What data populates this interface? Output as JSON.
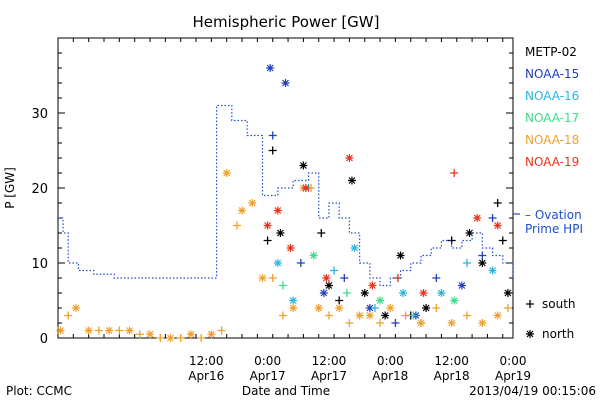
{
  "chart_data": {
    "type": "scatter",
    "title": "Hemispheric Power [GW]",
    "ylabel": "P [GW]",
    "xlabel": "Date and Time",
    "ylim": [
      0,
      40
    ],
    "xlim": [
      "2013-04-15 07:00",
      "2013-04-19 00:00"
    ],
    "yticks": [
      0,
      10,
      20,
      30
    ],
    "xticks": [
      {
        "t": "2013-04-16 12:00",
        "line1": "12:00",
        "line2": "Apr16"
      },
      {
        "t": "2013-04-17 00:00",
        "line1": "0:00",
        "line2": "Apr17"
      },
      {
        "t": "2013-04-17 12:00",
        "line1": "12:00",
        "line2": "Apr17"
      },
      {
        "t": "2013-04-18 00:00",
        "line1": "0:00",
        "line2": "Apr18"
      },
      {
        "t": "2013-04-18 12:00",
        "line1": "12:00",
        "line2": "Apr18"
      },
      {
        "t": "2013-04-19 00:00",
        "line1": "0:00",
        "line2": "Apr19"
      }
    ],
    "legend_position": "right",
    "series": [
      {
        "name": "METP-02",
        "color": "#000000",
        "points": [
          {
            "t": "2013-04-17 00:00",
            "y": 13,
            "m": "+"
          },
          {
            "t": "2013-04-17 01:00",
            "y": 25,
            "m": "+"
          },
          {
            "t": "2013-04-17 02:30",
            "y": 14,
            "m": "*"
          },
          {
            "t": "2013-04-17 07:00",
            "y": 23,
            "m": "*"
          },
          {
            "t": "2013-04-17 10:30",
            "y": 14,
            "m": "+"
          },
          {
            "t": "2013-04-17 12:00",
            "y": 7,
            "m": "*"
          },
          {
            "t": "2013-04-17 14:00",
            "y": 5,
            "m": "+"
          },
          {
            "t": "2013-04-17 16:30",
            "y": 21,
            "m": "*"
          },
          {
            "t": "2013-04-17 19:00",
            "y": 6,
            "m": "*"
          },
          {
            "t": "2013-04-17 23:00",
            "y": 3,
            "m": "*"
          },
          {
            "t": "2013-04-18 02:00",
            "y": 11,
            "m": "*"
          },
          {
            "t": "2013-04-18 04:00",
            "y": 3,
            "m": "+"
          },
          {
            "t": "2013-04-18 07:00",
            "y": 4,
            "m": "*"
          },
          {
            "t": "2013-04-18 12:00",
            "y": 13,
            "m": "+"
          },
          {
            "t": "2013-04-18 15:30",
            "y": 14,
            "m": "*"
          },
          {
            "t": "2013-04-18 18:00",
            "y": 10,
            "m": "*"
          },
          {
            "t": "2013-04-18 21:00",
            "y": 18,
            "m": "+"
          },
          {
            "t": "2013-04-18 22:00",
            "y": 13,
            "m": "+"
          },
          {
            "t": "2013-04-18 23:00",
            "y": 6,
            "m": "*"
          }
        ]
      },
      {
        "name": "NOAA-15",
        "color": "#1f3fbf",
        "points": [
          {
            "t": "2013-04-17 00:30",
            "y": 36,
            "m": "*"
          },
          {
            "t": "2013-04-17 01:00",
            "y": 27,
            "m": "+"
          },
          {
            "t": "2013-04-17 03:30",
            "y": 34,
            "m": "*"
          },
          {
            "t": "2013-04-17 06:30",
            "y": 10,
            "m": "+"
          },
          {
            "t": "2013-04-17 11:00",
            "y": 6,
            "m": "*"
          },
          {
            "t": "2013-04-17 15:00",
            "y": 8,
            "m": "+"
          },
          {
            "t": "2013-04-17 20:00",
            "y": 4,
            "m": "*"
          },
          {
            "t": "2013-04-18 01:00",
            "y": 2,
            "m": "+"
          },
          {
            "t": "2013-04-18 05:00",
            "y": 3,
            "m": "*"
          },
          {
            "t": "2013-04-18 09:00",
            "y": 8,
            "m": "+"
          },
          {
            "t": "2013-04-18 14:00",
            "y": 7,
            "m": "*"
          },
          {
            "t": "2013-04-18 18:00",
            "y": 11,
            "m": "+"
          },
          {
            "t": "2013-04-18 20:00",
            "y": 16,
            "m": "+"
          }
        ]
      },
      {
        "name": "NOAA-16",
        "color": "#29b6e0",
        "points": [
          {
            "t": "2013-04-17 02:00",
            "y": 10,
            "m": "*"
          },
          {
            "t": "2013-04-17 05:00",
            "y": 5,
            "m": "*"
          },
          {
            "t": "2013-04-17 08:00",
            "y": 20,
            "m": "+"
          },
          {
            "t": "2013-04-17 13:00",
            "y": 9,
            "m": "+"
          },
          {
            "t": "2013-04-17 17:00",
            "y": 12,
            "m": "*"
          },
          {
            "t": "2013-04-17 21:00",
            "y": 4,
            "m": "+"
          },
          {
            "t": "2013-04-18 02:30",
            "y": 6,
            "m": "*"
          },
          {
            "t": "2013-04-18 06:00",
            "y": 2,
            "m": "+"
          },
          {
            "t": "2013-04-18 10:00",
            "y": 6,
            "m": "*"
          },
          {
            "t": "2013-04-18 15:00",
            "y": 10,
            "m": "+"
          },
          {
            "t": "2013-04-18 20:00",
            "y": 9,
            "m": "*"
          }
        ]
      },
      {
        "name": "NOAA-17",
        "color": "#3ddc8a",
        "points": [
          {
            "t": "2013-04-17 03:00",
            "y": 7,
            "m": "+"
          },
          {
            "t": "2013-04-17 09:00",
            "y": 11,
            "m": "*"
          },
          {
            "t": "2013-04-17 15:30",
            "y": 6,
            "m": "+"
          },
          {
            "t": "2013-04-17 22:00",
            "y": 5,
            "m": "*"
          },
          {
            "t": "2013-04-18 04:30",
            "y": 3,
            "m": "+"
          },
          {
            "t": "2013-04-18 12:30",
            "y": 5,
            "m": "*"
          }
        ]
      },
      {
        "name": "NOAA-18",
        "color": "#f0a030",
        "points": [
          {
            "t": "2013-04-15 07:30",
            "y": 1,
            "m": "*"
          },
          {
            "t": "2013-04-15 09:00",
            "y": 3,
            "m": "+"
          },
          {
            "t": "2013-04-15 10:30",
            "y": 4,
            "m": "*"
          },
          {
            "t": "2013-04-15 13:00",
            "y": 1,
            "m": "*"
          },
          {
            "t": "2013-04-15 15:00",
            "y": 1,
            "m": "+"
          },
          {
            "t": "2013-04-15 17:00",
            "y": 1,
            "m": "*"
          },
          {
            "t": "2013-04-15 19:00",
            "y": 1,
            "m": "+"
          },
          {
            "t": "2013-04-15 21:00",
            "y": 1,
            "m": "*"
          },
          {
            "t": "2013-04-15 23:00",
            "y": 0.5,
            "m": "+"
          },
          {
            "t": "2013-04-16 01:00",
            "y": 0.5,
            "m": "*"
          },
          {
            "t": "2013-04-16 03:00",
            "y": 0,
            "m": "+"
          },
          {
            "t": "2013-04-16 05:00",
            "y": 0,
            "m": "*"
          },
          {
            "t": "2013-04-16 07:00",
            "y": 0,
            "m": "+"
          },
          {
            "t": "2013-04-16 09:00",
            "y": 0.5,
            "m": "*"
          },
          {
            "t": "2013-04-16 11:00",
            "y": 0,
            "m": "+"
          },
          {
            "t": "2013-04-16 13:00",
            "y": 0.5,
            "m": "*"
          },
          {
            "t": "2013-04-16 15:00",
            "y": 1,
            "m": "+"
          },
          {
            "t": "2013-04-16 16:00",
            "y": 22,
            "m": "*"
          },
          {
            "t": "2013-04-16 18:00",
            "y": 15,
            "m": "+"
          },
          {
            "t": "2013-04-16 19:00",
            "y": 17,
            "m": "*"
          },
          {
            "t": "2013-04-16 21:00",
            "y": 18,
            "m": "*"
          },
          {
            "t": "2013-04-16 23:00",
            "y": 8,
            "m": "*"
          },
          {
            "t": "2013-04-17 01:00",
            "y": 8,
            "m": "+"
          },
          {
            "t": "2013-04-17 03:00",
            "y": 3,
            "m": "+"
          },
          {
            "t": "2013-04-17 05:00",
            "y": 4,
            "m": "*"
          },
          {
            "t": "2013-04-17 07:00",
            "y": 20,
            "m": "*"
          },
          {
            "t": "2013-04-17 08:30",
            "y": 20,
            "m": "+"
          },
          {
            "t": "2013-04-17 10:00",
            "y": 4,
            "m": "*"
          },
          {
            "t": "2013-04-17 12:00",
            "y": 3,
            "m": "+"
          },
          {
            "t": "2013-04-17 14:00",
            "y": 4,
            "m": "*"
          },
          {
            "t": "2013-04-17 16:00",
            "y": 2,
            "m": "+"
          },
          {
            "t": "2013-04-17 18:00",
            "y": 3,
            "m": "*"
          },
          {
            "t": "2013-04-17 20:00",
            "y": 3,
            "m": "*"
          },
          {
            "t": "2013-04-17 22:00",
            "y": 2,
            "m": "+"
          },
          {
            "t": "2013-04-18 00:00",
            "y": 4,
            "m": "*"
          },
          {
            "t": "2013-04-18 03:00",
            "y": 3,
            "m": "+"
          },
          {
            "t": "2013-04-18 06:00",
            "y": 2,
            "m": "*"
          },
          {
            "t": "2013-04-18 09:00",
            "y": 4,
            "m": "+"
          },
          {
            "t": "2013-04-18 12:00",
            "y": 2,
            "m": "*"
          },
          {
            "t": "2013-04-18 15:00",
            "y": 3,
            "m": "+"
          },
          {
            "t": "2013-04-18 18:00",
            "y": 2,
            "m": "*"
          },
          {
            "t": "2013-04-18 21:00",
            "y": 3,
            "m": "*"
          },
          {
            "t": "2013-04-18 23:00",
            "y": 4,
            "m": "+"
          }
        ]
      },
      {
        "name": "NOAA-19",
        "color": "#e8341c",
        "points": [
          {
            "t": "2013-04-17 00:00",
            "y": 15,
            "m": "*"
          },
          {
            "t": "2013-04-17 02:00",
            "y": 17,
            "m": "*"
          },
          {
            "t": "2013-04-17 04:30",
            "y": 12,
            "m": "*"
          },
          {
            "t": "2013-04-17 07:30",
            "y": 20,
            "m": "*"
          },
          {
            "t": "2013-04-17 11:30",
            "y": 8,
            "m": "*"
          },
          {
            "t": "2013-04-17 16:00",
            "y": 24,
            "m": "*"
          },
          {
            "t": "2013-04-17 20:30",
            "y": 7,
            "m": "*"
          },
          {
            "t": "2013-04-18 01:30",
            "y": 8,
            "m": "+"
          },
          {
            "t": "2013-04-18 06:30",
            "y": 6,
            "m": "*"
          },
          {
            "t": "2013-04-18 12:30",
            "y": 22,
            "m": "+"
          },
          {
            "t": "2013-04-18 17:00",
            "y": 16,
            "m": "*"
          },
          {
            "t": "2013-04-18 21:00",
            "y": 15,
            "m": "*"
          }
        ]
      },
      {
        "name": "Ovation Prime HPI",
        "color": "#1f4fcc",
        "style": "dotted-step",
        "points": [
          {
            "t": "2013-04-15 07:00",
            "y": 16
          },
          {
            "t": "2013-04-15 08:00",
            "y": 14
          },
          {
            "t": "2013-04-15 09:00",
            "y": 10
          },
          {
            "t": "2013-04-15 11:00",
            "y": 9
          },
          {
            "t": "2013-04-15 14:00",
            "y": 8.5
          },
          {
            "t": "2013-04-15 18:00",
            "y": 8
          },
          {
            "t": "2013-04-16 14:00",
            "y": 8
          },
          {
            "t": "2013-04-16 14:01",
            "y": 31
          },
          {
            "t": "2013-04-16 17:00",
            "y": 29
          },
          {
            "t": "2013-04-16 20:00",
            "y": 27
          },
          {
            "t": "2013-04-16 23:00",
            "y": 19
          },
          {
            "t": "2013-04-17 02:00",
            "y": 20
          },
          {
            "t": "2013-04-17 05:00",
            "y": 21
          },
          {
            "t": "2013-04-17 08:00",
            "y": 22
          },
          {
            "t": "2013-04-17 10:00",
            "y": 16
          },
          {
            "t": "2013-04-17 12:00",
            "y": 18
          },
          {
            "t": "2013-04-17 14:00",
            "y": 16
          },
          {
            "t": "2013-04-17 16:00",
            "y": 14
          },
          {
            "t": "2013-04-17 18:00",
            "y": 10
          },
          {
            "t": "2013-04-17 20:00",
            "y": 8
          },
          {
            "t": "2013-04-17 22:00",
            "y": 7
          },
          {
            "t": "2013-04-18 00:00",
            "y": 8
          },
          {
            "t": "2013-04-18 02:00",
            "y": 9
          },
          {
            "t": "2013-04-18 04:00",
            "y": 10
          },
          {
            "t": "2013-04-18 06:00",
            "y": 11
          },
          {
            "t": "2013-04-18 08:00",
            "y": 12
          },
          {
            "t": "2013-04-18 10:00",
            "y": 13
          },
          {
            "t": "2013-04-18 12:00",
            "y": 12
          },
          {
            "t": "2013-04-18 14:00",
            "y": 13
          },
          {
            "t": "2013-04-18 16:00",
            "y": 14
          },
          {
            "t": "2013-04-18 18:00",
            "y": 12
          },
          {
            "t": "2013-04-18 20:00",
            "y": 11
          },
          {
            "t": "2013-04-18 22:00",
            "y": 10
          },
          {
            "t": "2013-04-19 00:00",
            "y": 8
          }
        ]
      }
    ],
    "legend_entries": [
      "METP-02",
      "NOAA-15",
      "NOAA-16",
      "NOAA-17",
      "NOAA-18",
      "NOAA-19"
    ],
    "ovation_label": [
      "– Ovation",
      "Prime HPI"
    ],
    "marker_legend": [
      {
        "symbol": "+",
        "label": "south"
      },
      {
        "symbol": "*",
        "label": "north"
      }
    ]
  },
  "footer": {
    "plot_label": "Plot: CCMC",
    "timestamp": "2013/04/19 00:15:06"
  }
}
